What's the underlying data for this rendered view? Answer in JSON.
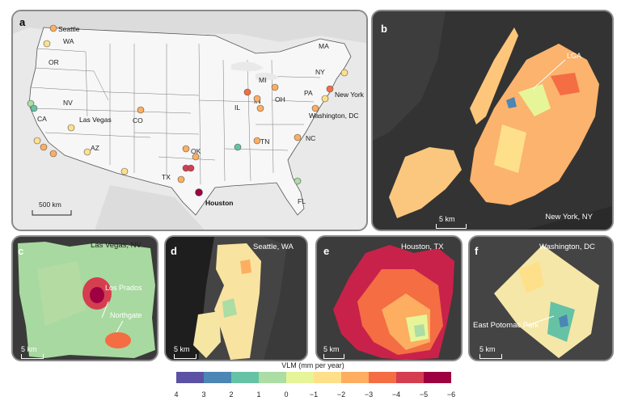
{
  "panels": {
    "a": {
      "label": "a",
      "states": [
        "WA",
        "OR",
        "NV",
        "CA",
        "AZ",
        "CO",
        "TX",
        "OK",
        "IL",
        "IN",
        "MI",
        "OH",
        "TN",
        "NC",
        "PA",
        "NY",
        "MA",
        "FL"
      ],
      "cities": {
        "seattle": "Seattle",
        "las_vegas": "Las Vegas",
        "houston": "Houston",
        "new_york": "New York",
        "washington": "Washington, DC"
      },
      "scale": "500 km"
    },
    "b": {
      "label": "b",
      "title": "New York, NY",
      "annotation": "LGA",
      "scale": "5 km"
    },
    "c": {
      "label": "c",
      "title": "Las Vegas, NV",
      "annotations": [
        "Los Prados",
        "Northgate"
      ],
      "scale": "5 km"
    },
    "d": {
      "label": "d",
      "title": "Seattle, WA",
      "scale": "5 km"
    },
    "e": {
      "label": "e",
      "title": "Houston, TX",
      "scale": "5 km"
    },
    "f": {
      "label": "f",
      "title": "Washington, DC",
      "annotation": "East Potomac Park",
      "scale": "5 km"
    }
  },
  "legend": {
    "title": "VLM (mm per year)",
    "ticks": [
      "4",
      "3",
      "2",
      "1",
      "0",
      "−1",
      "−2",
      "−3",
      "−4",
      "−5",
      "−6"
    ],
    "colors": [
      "#5b52a3",
      "#4b86b4",
      "#66c2a5",
      "#abdda4",
      "#e6f598",
      "#fee08b",
      "#fdae61",
      "#f46d43",
      "#d53e4f",
      "#9e0142"
    ]
  }
}
